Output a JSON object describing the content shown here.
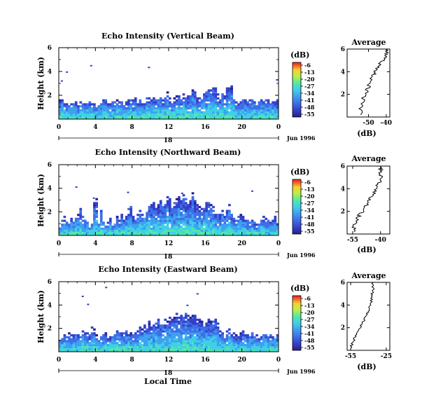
{
  "colors": {
    "ramp": [
      "#2a1f8f",
      "#3440c8",
      "#3f6ee8",
      "#3fa0f0",
      "#3fd0e8",
      "#52e8a8",
      "#b8f048",
      "#f8d030",
      "#f86028",
      "#e82020"
    ]
  },
  "chart_data": [
    {
      "type": "heatmap",
      "title": "Echo Intensity (Vertical Beam)",
      "ylabel": "Height (km)",
      "xlabel": "",
      "ylim": [
        0,
        6
      ],
      "xlim": [
        0,
        24
      ],
      "x_ticks": [
        "0",
        "4",
        "8",
        "12",
        "16",
        "20",
        "0"
      ],
      "y_ticks": [
        "2",
        "4",
        "6"
      ],
      "date_day": "18",
      "date_label": "Jun 1996",
      "profile_x": [
        -55,
        -54,
        -52,
        -50,
        -49,
        -47,
        -45,
        -43,
        -41,
        -40,
        -40
      ],
      "profile_h": [
        0.2,
        1.0,
        2.0,
        2.6,
        3.2,
        3.8,
        4.3,
        4.8,
        5.2,
        5.6,
        6.0
      ],
      "colorbar": {
        "unit": "(dB)",
        "ticks": [
          "-6",
          "-13",
          "-20",
          "-27",
          "-34",
          "-41",
          "-48",
          "-55"
        ]
      },
      "profile": {
        "title": "Average",
        "xlabel": "(dB)",
        "xlim": [
          -62,
          -38
        ],
        "x_ticks": [
          "-50",
          "-40"
        ],
        "y_ticks": [
          "2",
          "4",
          "6"
        ],
        "y_vals": [
          2,
          4,
          6
        ],
        "tick_vals": [
          -50,
          -40
        ]
      },
      "cloud_top": [
        1.6,
        1.9,
        1.5,
        1.4,
        1.4,
        1.3,
        1.5,
        1.6,
        1.4,
        1.5,
        1.4,
        1.3,
        1.4,
        1.5,
        1.6,
        1.4,
        1.4,
        1.5,
        1.5,
        1.7,
        1.6,
        1.4,
        1.5,
        1.6,
        1.5,
        1.6,
        1.7,
        1.5,
        1.4,
        1.5,
        1.6,
        1.7,
        1.6,
        1.8,
        1.5,
        1.6,
        1.7,
        1.5,
        1.9,
        1.8,
        1.7,
        1.9,
        1.7,
        1.8,
        2.0,
        1.7,
        1.8,
        2.3,
        1.9,
        1.7,
        1.8,
        2.0,
        2.2,
        1.9,
        2.4,
        2.1,
        2.0,
        2.2,
        2.5,
        2.3,
        1.8,
        1.9,
        2.0,
        2.2,
        2.4,
        2.6,
        2.5,
        2.8,
        2.6,
        2.2,
        1.9,
        2.2,
        2.0,
        2.6,
        3.0,
        2.8,
        1.9,
        1.5,
        1.6,
        1.7,
        1.8,
        1.6,
        1.5,
        1.6,
        1.7,
        1.6,
        1.5,
        1.6,
        1.7,
        1.5,
        1.6,
        1.7,
        1.6,
        1.5,
        1.7,
        1.6
      ]
    },
    {
      "type": "heatmap",
      "title": "Echo Intensity (Northward Beam)",
      "ylabel": "Height (km)",
      "xlabel": "",
      "ylim": [
        0,
        6
      ],
      "xlim": [
        0,
        24
      ],
      "x_ticks": [
        "0",
        "4",
        "8",
        "12",
        "16",
        "20",
        "0"
      ],
      "y_ticks": [
        "2",
        "4",
        "6"
      ],
      "date_day": "18",
      "date_label": "Jun 1996",
      "profile_x": [
        -55,
        -54,
        -52,
        -50,
        -47,
        -45,
        -43,
        -41,
        -40,
        -40,
        -40
      ],
      "profile_h": [
        0.2,
        0.8,
        1.5,
        2.0,
        2.7,
        3.2,
        3.8,
        4.4,
        5.0,
        5.6,
        6.0
      ],
      "colorbar": {
        "unit": "(dB)",
        "ticks": [
          "-6",
          "-13",
          "-20",
          "-27",
          "-34",
          "-41",
          "-48",
          "-55"
        ]
      },
      "profile": {
        "title": "Average",
        "xlabel": "(dB)",
        "xlim": [
          -58,
          -35
        ],
        "x_ticks": [
          "-55",
          "-40"
        ],
        "y_ticks": [
          "2",
          "4",
          "6"
        ],
        "y_vals": [
          2,
          4,
          6
        ],
        "tick_vals": [
          -55,
          -40
        ]
      },
      "cloud_top": [
        1.0,
        1.3,
        1.6,
        1.4,
        1.2,
        1.5,
        1.3,
        1.7,
        1.9,
        2.3,
        1.6,
        1.4,
        1.2,
        1.0,
        1.3,
        2.8,
        3.2,
        1.4,
        2.1,
        1.3,
        0.9,
        1.2,
        1.5,
        1.1,
        1.3,
        1.6,
        1.4,
        1.9,
        1.5,
        1.6,
        2.4,
        2.7,
        1.6,
        1.3,
        2.1,
        2.2,
        1.8,
        1.9,
        2.3,
        2.5,
        2.6,
        2.8,
        2.5,
        2.6,
        3.0,
        2.7,
        2.8,
        3.3,
        3.1,
        2.7,
        2.9,
        3.2,
        3.4,
        3.0,
        3.5,
        3.2,
        2.8,
        3.1,
        3.6,
        3.0,
        2.6,
        2.5,
        2.4,
        2.7,
        2.8,
        3.1,
        2.7,
        2.5,
        2.2,
        2.0,
        1.8,
        2.1,
        1.9,
        2.2,
        2.6,
        1.8,
        1.5,
        1.4,
        1.6,
        1.8,
        1.7,
        1.4,
        1.3,
        1.2,
        1.5,
        1.1,
        1.0,
        1.2,
        1.4,
        1.6,
        1.5,
        1.3,
        1.2,
        1.4,
        1.6,
        1.2
      ]
    },
    {
      "type": "heatmap",
      "title": "Echo Intensity (Eastward Beam)",
      "ylabel": "Height (km)",
      "xlabel": "Local Time",
      "ylim": [
        0,
        6
      ],
      "xlim": [
        0,
        24
      ],
      "x_ticks": [
        "0",
        "4",
        "8",
        "12",
        "16",
        "20",
        "0"
      ],
      "y_ticks": [
        "2",
        "4",
        "6"
      ],
      "date_day": "18",
      "date_label": "Jun 1996",
      "profile_x": [
        -55,
        -53,
        -50,
        -47,
        -44,
        -42,
        -40,
        -38,
        -37,
        -36,
        -36
      ],
      "profile_h": [
        0.2,
        0.8,
        1.4,
        2.0,
        2.6,
        3.1,
        3.6,
        4.2,
        4.8,
        5.4,
        6.0
      ],
      "colorbar": {
        "unit": "(dB)",
        "ticks": [
          "-6",
          "-13",
          "-20",
          "-27",
          "-34",
          "-41",
          "-48",
          "-55"
        ]
      },
      "profile": {
        "title": "Average",
        "xlabel": "(dB)",
        "xlim": [
          -58,
          -22
        ],
        "x_ticks": [
          "-55",
          "-25"
        ],
        "y_ticks": [
          "2",
          "4",
          "6"
        ],
        "y_vals": [
          2,
          4,
          6
        ],
        "tick_vals": [
          -55,
          -25
        ]
      },
      "cloud_top": [
        1.2,
        1.3,
        1.5,
        1.4,
        1.6,
        1.5,
        1.6,
        1.7,
        1.5,
        1.4,
        1.8,
        2.0,
        1.6,
        1.5,
        2.1,
        2.0,
        1.5,
        1.4,
        1.6,
        1.8,
        1.6,
        1.3,
        1.5,
        1.4,
        1.6,
        1.9,
        2.0,
        1.8,
        1.6,
        1.9,
        1.7,
        1.6,
        1.5,
        1.7,
        1.8,
        2.2,
        2.0,
        2.4,
        2.1,
        2.6,
        2.4,
        2.3,
        2.5,
        2.8,
        2.4,
        2.6,
        2.9,
        2.7,
        3.0,
        2.8,
        3.2,
        3.4,
        3.0,
        3.1,
        3.3,
        3.6,
        3.2,
        3.0,
        3.3,
        3.1,
        2.9,
        2.8,
        2.6,
        2.4,
        2.5,
        2.8,
        2.6,
        2.7,
        2.9,
        2.5,
        1.9,
        1.7,
        1.6,
        1.8,
        2.0,
        1.8,
        1.6,
        1.5,
        1.4,
        1.6,
        1.8,
        1.6,
        1.5,
        1.4,
        1.6,
        1.7,
        1.5,
        1.3,
        1.4,
        1.6,
        1.5,
        1.4,
        1.5,
        1.3,
        1.4,
        1.5
      ]
    }
  ]
}
